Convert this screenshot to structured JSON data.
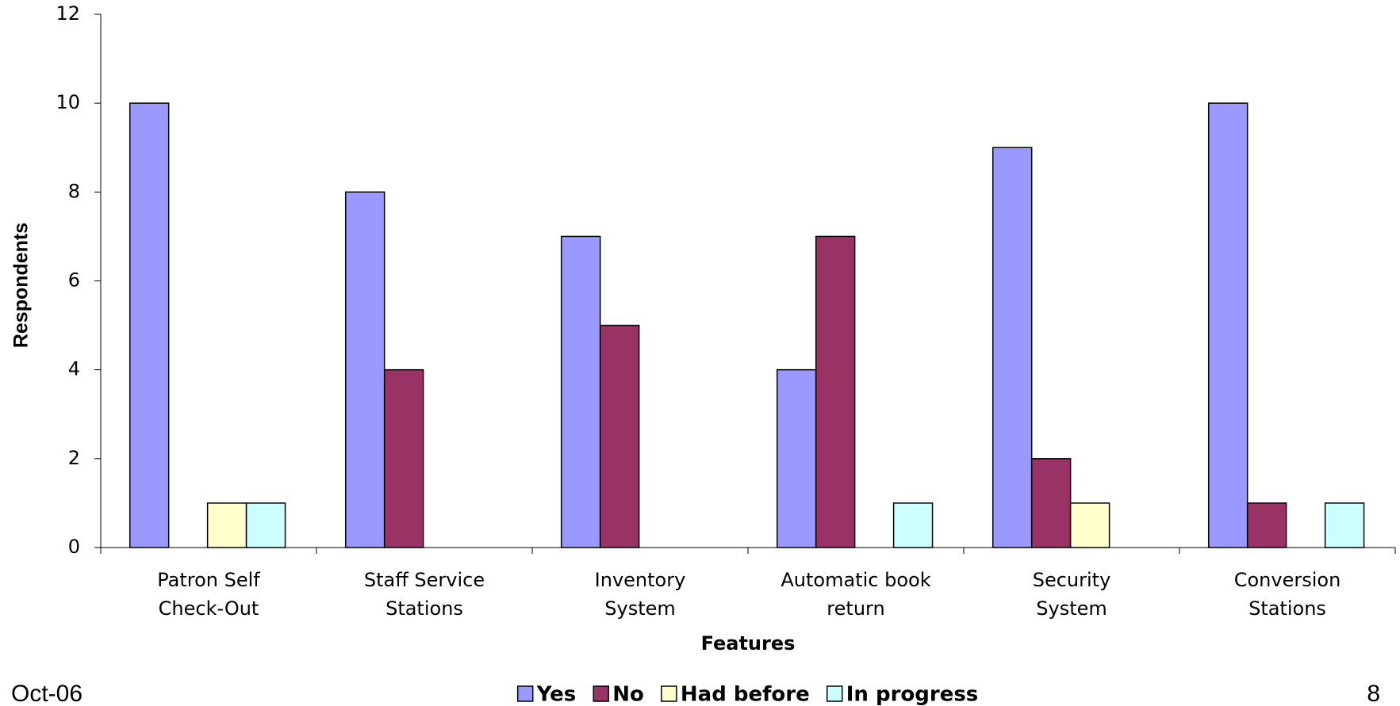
{
  "chart_data": {
    "type": "bar",
    "categories": [
      [
        "Patron Self",
        "Check-Out"
      ],
      [
        "Staff Service",
        "Stations"
      ],
      [
        "Inventory",
        "System"
      ],
      [
        "Automatic book",
        "return"
      ],
      [
        "Security",
        "System"
      ],
      [
        "Conversion",
        "Stations"
      ]
    ],
    "series": [
      {
        "name": "Yes",
        "color": "#9999ff",
        "values": [
          10,
          8,
          7,
          4,
          9,
          10
        ]
      },
      {
        "name": "No",
        "color": "#993366",
        "values": [
          0,
          4,
          5,
          7,
          2,
          1
        ]
      },
      {
        "name": "Had before",
        "color": "#ffffcc",
        "values": [
          1,
          0,
          0,
          0,
          1,
          0
        ]
      },
      {
        "name": "In progress",
        "color": "#ccffff",
        "values": [
          1,
          0,
          0,
          1,
          0,
          1
        ]
      }
    ],
    "xlabel": "Features",
    "ylabel": "Respondents",
    "ylim": [
      0,
      12
    ],
    "yticks": [
      0,
      2,
      4,
      6,
      8,
      10,
      12
    ],
    "grid": false,
    "legend": "bottom"
  },
  "footer": {
    "date": "Oct-06",
    "page": "8"
  }
}
